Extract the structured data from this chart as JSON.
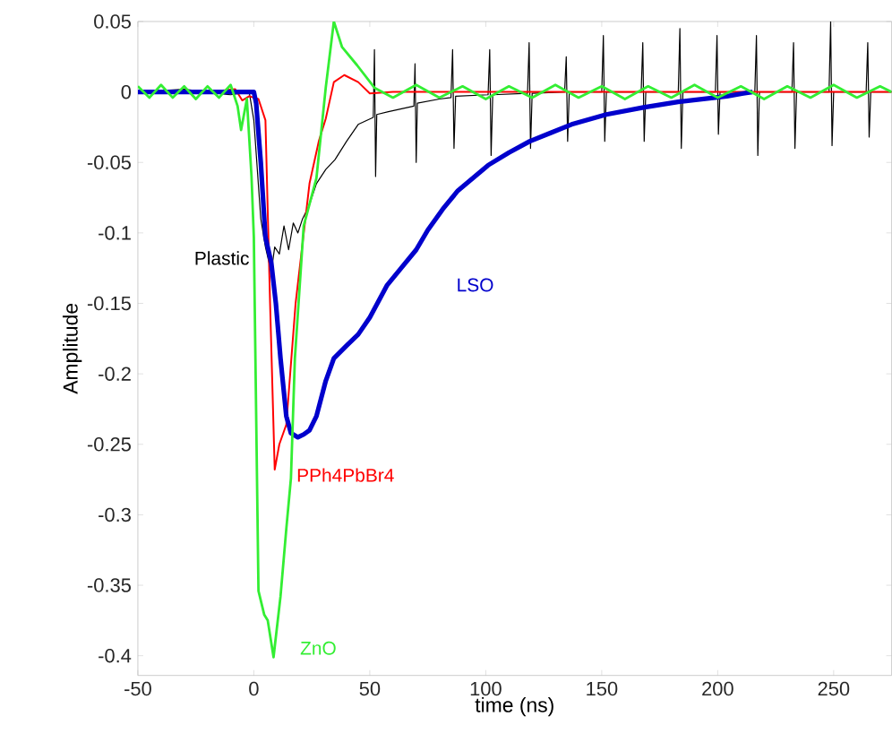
{
  "chart_data": {
    "type": "line",
    "xlabel": "time (ns)",
    "ylabel": "Amplitude",
    "xlim": [
      -50,
      275
    ],
    "ylim": [
      -0.414,
      0.05
    ],
    "xticks": [
      -50,
      0,
      50,
      100,
      150,
      200,
      250
    ],
    "yticks": [
      -0.4,
      -0.35,
      -0.3,
      -0.25,
      -0.2,
      -0.15,
      -0.1,
      -0.05,
      0,
      0.05
    ],
    "grid": false,
    "marker": "none",
    "line_style": "solid",
    "series": [
      {
        "name": "Plastic",
        "color": "#000000",
        "x": [
          -50,
          -30,
          -10,
          -2,
          0,
          3,
          5,
          7.5,
          9,
          11,
          13,
          15,
          17,
          19,
          21,
          24,
          27,
          31,
          35,
          40,
          45,
          51.5,
          52,
          52.5,
          53,
          58,
          69,
          69.5,
          70,
          70.5,
          80,
          85,
          85.7,
          86.3,
          87,
          101,
          101.7,
          102.3,
          103,
          118,
          118.7,
          119.3,
          120,
          134,
          134.7,
          135.3,
          136,
          150,
          150.7,
          151.3,
          152,
          167,
          167.7,
          168.3,
          169,
          183,
          183.7,
          184.3,
          185,
          199,
          199.7,
          200.3,
          201,
          216,
          216.7,
          217.3,
          218,
          232,
          232.7,
          233.3,
          234,
          248,
          248.7,
          249.3,
          250,
          264,
          264.7,
          265.3,
          266,
          275
        ],
        "values": [
          0,
          0.002,
          -0.002,
          0,
          -0.02,
          -0.09,
          -0.11,
          -0.128,
          -0.11,
          -0.115,
          -0.095,
          -0.112,
          -0.093,
          -0.1,
          -0.09,
          -0.08,
          -0.065,
          -0.055,
          -0.048,
          -0.035,
          -0.023,
          -0.018,
          0.03,
          -0.06,
          -0.016,
          -0.014,
          -0.01,
          0.02,
          -0.05,
          -0.008,
          -0.005,
          -0.004,
          0.03,
          -0.04,
          -0.003,
          -0.002,
          0.03,
          -0.045,
          -0.002,
          -0.001,
          0.035,
          -0.04,
          -0.001,
          0,
          0.025,
          -0.035,
          0,
          0,
          0.04,
          -0.035,
          0,
          0,
          0.035,
          -0.035,
          0,
          0,
          0.045,
          -0.04,
          0,
          0,
          0.04,
          -0.03,
          0,
          0,
          0.04,
          -0.045,
          0,
          0,
          0.035,
          -0.04,
          0,
          0,
          0.05,
          -0.038,
          0,
          0,
          0.035,
          -0.032,
          0,
          0
        ]
      },
      {
        "name": "PPh4PbBr4",
        "color": "#ff0000",
        "x": [
          -50,
          -20,
          -8,
          -5,
          -2,
          2,
          5,
          7,
          9,
          11,
          14,
          18,
          24,
          28,
          31,
          34.5,
          39,
          45,
          50,
          60,
          100,
          150,
          200,
          275
        ],
        "values": [
          0,
          0,
          0.002,
          -0.006,
          -0.003,
          -0.005,
          -0.02,
          -0.15,
          -0.268,
          -0.25,
          -0.236,
          -0.15,
          -0.065,
          -0.035,
          -0.019,
          0.007,
          0.012,
          0.007,
          -0.001,
          0,
          0,
          0,
          0,
          0
        ]
      },
      {
        "name": "LSO",
        "color": "#0000cc",
        "x": [
          -50,
          -10,
          0,
          1,
          3,
          5,
          7.5,
          9.5,
          11.5,
          14,
          16,
          19,
          21.5,
          24,
          27,
          31,
          34.5,
          40,
          45,
          50,
          57.5,
          64,
          70,
          75,
          81.5,
          88,
          101,
          110,
          119,
          128,
          137,
          152,
          168,
          183,
          204,
          211,
          215
        ],
        "values": [
          0,
          0,
          0,
          -0.008,
          -0.05,
          -0.103,
          -0.121,
          -0.15,
          -0.189,
          -0.23,
          -0.242,
          -0.245,
          -0.243,
          -0.24,
          -0.23,
          -0.205,
          -0.189,
          -0.18,
          -0.172,
          -0.16,
          -0.137,
          -0.124,
          -0.112,
          -0.098,
          -0.083,
          -0.07,
          -0.052,
          -0.043,
          -0.035,
          -0.029,
          -0.023,
          -0.016,
          -0.011,
          -0.007,
          -0.003,
          -0.001,
          0
        ]
      },
      {
        "name": "ZnO",
        "color": "#33ee33",
        "x": [
          -50,
          -45,
          -40,
          -35,
          -30,
          -25,
          -20,
          -15,
          -10,
          -7,
          -5.5,
          -3,
          -1,
          0,
          2,
          4.5,
          6,
          8.5,
          11.5,
          14,
          16,
          17.7,
          21.5,
          27,
          31,
          34.5,
          38,
          44.5,
          52,
          60,
          70,
          80,
          90,
          100,
          110,
          120,
          130,
          140,
          150,
          160,
          170,
          180,
          190,
          200,
          210,
          220,
          230,
          240,
          250,
          260,
          270,
          275
        ],
        "values": [
          0.004,
          -0.004,
          0.005,
          -0.004,
          0.004,
          -0.005,
          0.004,
          -0.004,
          0.005,
          -0.01,
          -0.027,
          -0.005,
          -0.06,
          -0.103,
          -0.354,
          -0.371,
          -0.375,
          -0.401,
          -0.358,
          -0.31,
          -0.274,
          -0.189,
          -0.095,
          -0.061,
          0.003,
          0.05,
          0.032,
          0.019,
          0.003,
          -0.004,
          0.005,
          -0.004,
          0.004,
          -0.005,
          0.004,
          -0.004,
          0.005,
          -0.004,
          0.004,
          -0.005,
          0.004,
          -0.004,
          0.005,
          -0.004,
          0.004,
          -0.005,
          0.004,
          -0.004,
          0.005,
          -0.004,
          0.004,
          0
        ]
      }
    ]
  }
}
